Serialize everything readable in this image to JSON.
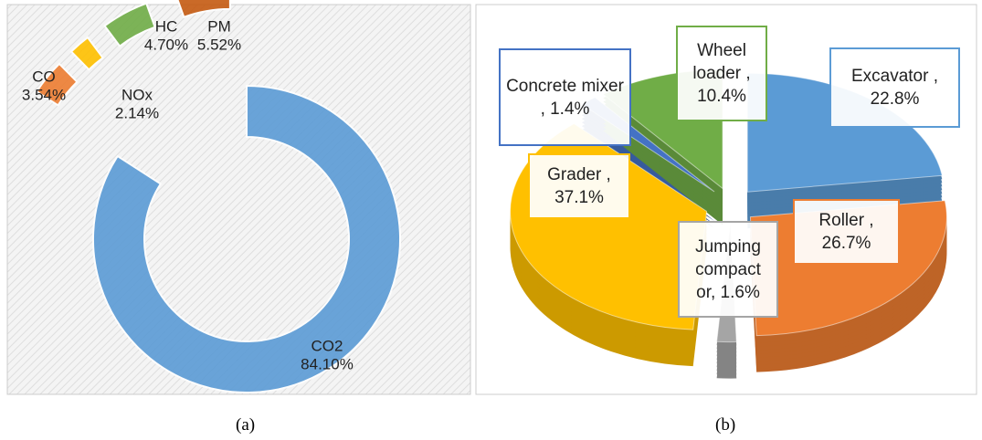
{
  "chart_data": [
    {
      "type": "donut",
      "caption": "(a)",
      "categories": [
        "CO2",
        "CO",
        "NOx",
        "HC",
        "PM"
      ],
      "values": [
        84.1,
        3.54,
        2.14,
        4.7,
        5.52
      ],
      "value_labels": [
        "84.10%",
        "3.54%",
        "2.14%",
        "4.70%",
        "5.52%"
      ],
      "colors": [
        "#5b9bd5",
        "#ed7d31",
        "#ffc000",
        "#70ad47",
        "#c55a11"
      ]
    },
    {
      "type": "pie",
      "caption": "(b)",
      "labels": [
        "Excavator , 22.8%",
        "Roller , 26.7%",
        "Jumping compact or, 1.6%",
        "Grader , 37.1%",
        "Concrete mixer , 1.4%",
        "Wheel loader , 10.4%"
      ],
      "values": [
        22.8,
        26.7,
        1.6,
        37.1,
        1.4,
        10.4
      ],
      "colors": [
        "#5b9bd5",
        "#ed7d31",
        "#a5a5a5",
        "#ffc000",
        "#4472c4",
        "#70ad47"
      ]
    }
  ]
}
